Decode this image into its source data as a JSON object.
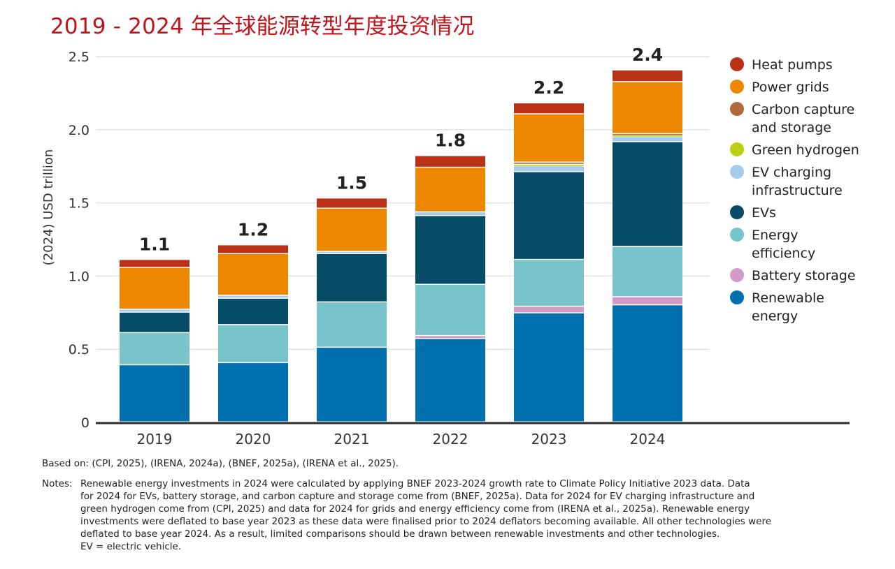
{
  "title": "2019 - 2024 年全球能源转型年度投资情况",
  "chart_data": {
    "type": "bar",
    "stacked": true,
    "title": "2019 - 2024 年全球能源转型年度投资情况",
    "xlabel": "",
    "ylabel": "(2024) USD trillion",
    "ylim": [
      0,
      2.5
    ],
    "yticks": [
      0,
      0.5,
      1.0,
      1.5,
      2.0,
      2.5
    ],
    "ytick_labels": [
      "0",
      "0.5",
      "1.0",
      "1.5",
      "2.0",
      "2.5"
    ],
    "grid": true,
    "legend_position": "right",
    "categories": [
      "2019",
      "2020",
      "2021",
      "2022",
      "2023",
      "2024"
    ],
    "totals": [
      "1.1",
      "1.2",
      "1.5",
      "1.8",
      "2.2",
      "2.4"
    ],
    "series": [
      {
        "name": "Renewable energy",
        "color": "#0071ae",
        "values": [
          0.39,
          0.405,
          0.51,
          0.57,
          0.745,
          0.8
        ]
      },
      {
        "name": "Battery storage",
        "color": "#d49ac6",
        "values": [
          0.0,
          0.0,
          0.0,
          0.02,
          0.045,
          0.055
        ]
      },
      {
        "name": "Energy efficiency",
        "color": "#78c4ca",
        "values": [
          0.22,
          0.26,
          0.31,
          0.35,
          0.32,
          0.345
        ]
      },
      {
        "name": "EVs",
        "color": "#064c68",
        "values": [
          0.14,
          0.18,
          0.33,
          0.47,
          0.6,
          0.715
        ]
      },
      {
        "name": "EV charging infrastructure",
        "color": "#a6cbeb",
        "values": [
          0.02,
          0.02,
          0.015,
          0.025,
          0.04,
          0.035
        ]
      },
      {
        "name": "Green hydrogen",
        "color": "#bccf12",
        "values": [
          0.0,
          0.0,
          0.0,
          0.0,
          0.01,
          0.01
        ]
      },
      {
        "name": "Carbon capture and storage",
        "color": "#b06a3c",
        "values": [
          0.0,
          0.0,
          0.0,
          0.0,
          0.015,
          0.01
        ]
      },
      {
        "name": "Power grids",
        "color": "#ee8700",
        "values": [
          0.285,
          0.285,
          0.295,
          0.305,
          0.33,
          0.355
        ]
      },
      {
        "name": "Heat pumps",
        "color": "#b93218",
        "values": [
          0.055,
          0.06,
          0.07,
          0.08,
          0.075,
          0.08
        ]
      }
    ]
  },
  "legend": [
    {
      "label": "Heat pumps",
      "color": "#b93218"
    },
    {
      "label": "Power grids",
      "color": "#ee8700"
    },
    {
      "label": "Carbon capture and storage",
      "color": "#b06a3c"
    },
    {
      "label": "Green hydrogen",
      "color": "#bccf12"
    },
    {
      "label": "EV charging infrastructure",
      "color": "#a6cbeb"
    },
    {
      "label": "EVs",
      "color": "#064c68"
    },
    {
      "label": "Energy efficiency",
      "color": "#78c4ca"
    },
    {
      "label": "Battery storage",
      "color": "#d49ac6"
    },
    {
      "label": "Renewable energy",
      "color": "#0071ae"
    }
  ],
  "legend_lines": [
    [
      "Heat pumps"
    ],
    [
      "Power grids"
    ],
    [
      "Carbon capture",
      "and storage"
    ],
    [
      "Green hydrogen"
    ],
    [
      "EV charging",
      "infrastructure"
    ],
    [
      "EVs"
    ],
    [
      "Energy",
      "efficiency"
    ],
    [
      "Battery storage"
    ],
    [
      "Renewable",
      "energy"
    ]
  ],
  "source": "Based on: (CPI, 2025), (IRENA, 2024a), (BNEF, 2025a), (IRENA et al., 2025).",
  "notes": {
    "label": "Notes:",
    "lines": [
      "Renewable energy investments in 2024 were calculated by applying BNEF 2023-2024 growth rate to Climate Policy Initiative 2023 data. Data",
      "for 2024 for EVs, battery storage, and carbon capture and storage come from (BNEF, 2025a). Data for 2024 for EV charging infrastructure and",
      "green hydrogen come from (CPI, 2025) and data for 2024 for grids and energy efficiency come from (IRENA et al., 2025a). Renewable energy",
      "investments were deflated to base year 2023 as these data were finalised prior to 2024 deflators becoming available. All other technologies were",
      "deflated to base year 2024. As a result, limited comparisons should be drawn between renewable investments and other technologies.",
      "EV = electric vehicle."
    ]
  }
}
